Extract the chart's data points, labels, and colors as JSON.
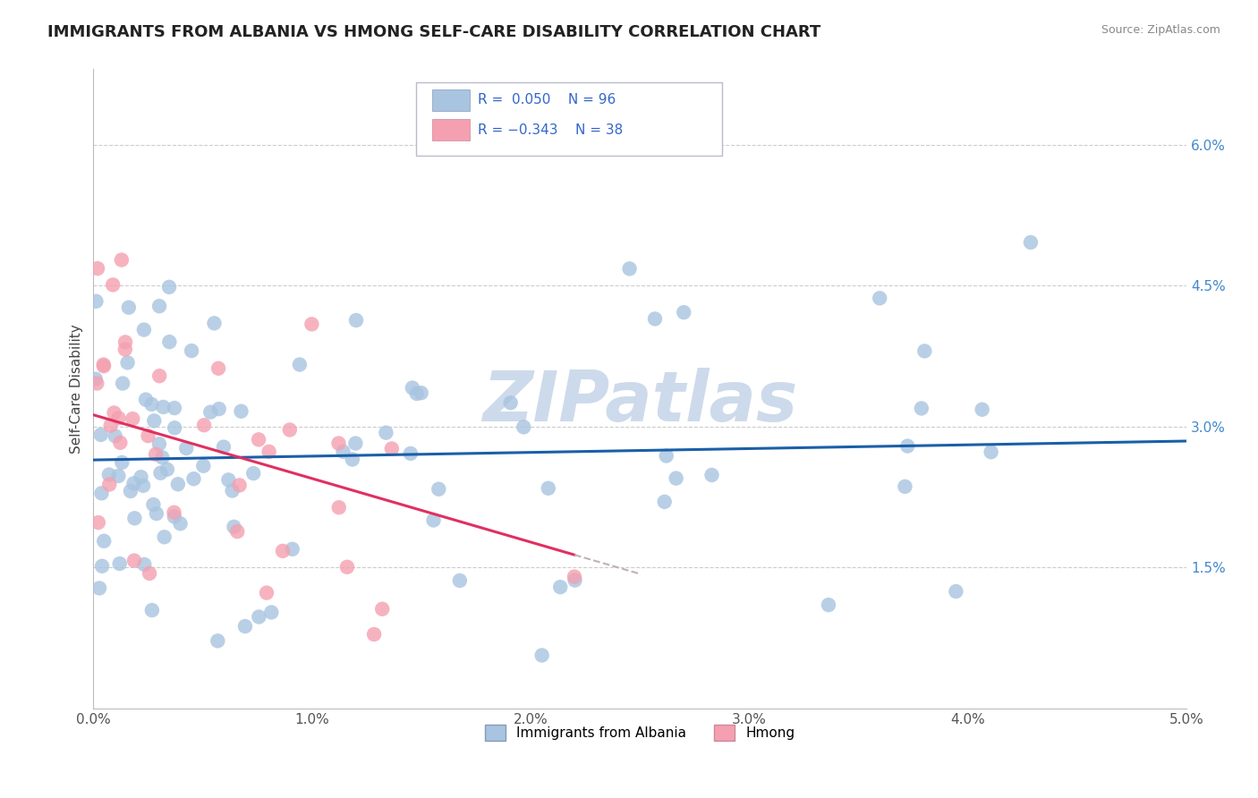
{
  "title": "IMMIGRANTS FROM ALBANIA VS HMONG SELF-CARE DISABILITY CORRELATION CHART",
  "source_text": "Source: ZipAtlas.com",
  "ylabel": "Self-Care Disability",
  "xlim": [
    0.0,
    0.05
  ],
  "ylim": [
    0.0,
    0.068
  ],
  "xticks": [
    0.0,
    0.01,
    0.02,
    0.03,
    0.04,
    0.05
  ],
  "xtick_labels": [
    "0.0%",
    "1.0%",
    "2.0%",
    "3.0%",
    "4.0%",
    "5.0%"
  ],
  "yticks": [
    0.015,
    0.03,
    0.045,
    0.06
  ],
  "ytick_labels": [
    "1.5%",
    "3.0%",
    "4.5%",
    "6.0%"
  ],
  "legend_blue_label": "Immigrants from Albania",
  "legend_pink_label": "Hmong",
  "r_blue": 0.05,
  "n_blue": 96,
  "r_pink": -0.343,
  "n_pink": 38,
  "blue_color": "#a8c4e0",
  "pink_color": "#f4a0b0",
  "trend_blue_color": "#1a5fa8",
  "trend_pink_color": "#e03060",
  "watermark_color": "#cddaeb",
  "background_color": "#ffffff",
  "title_fontsize": 13,
  "axis_label_fontsize": 11,
  "tick_fontsize": 11
}
